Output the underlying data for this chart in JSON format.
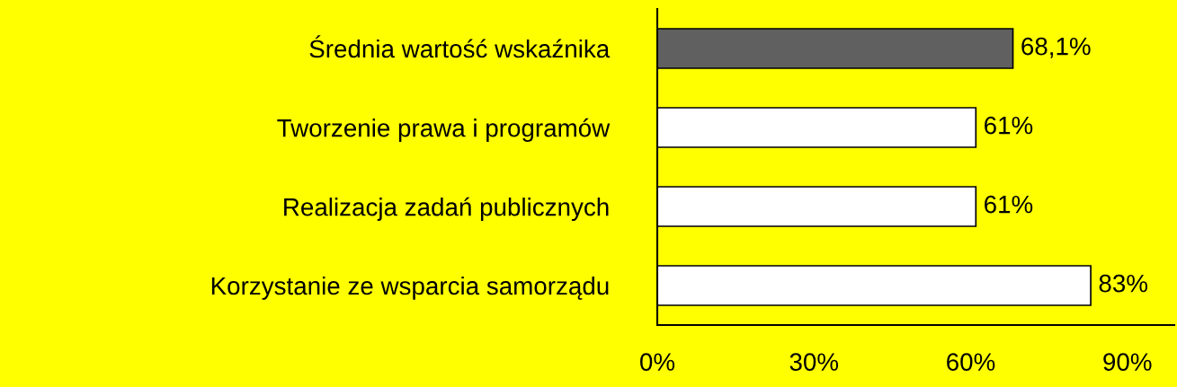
{
  "chart_data": {
    "type": "bar",
    "orientation": "horizontal",
    "categories": [
      "Średnia wartość wskaźnika",
      "Tworzenie prawa i programów",
      "Realizacja zadań publicznych",
      "Korzystanie ze wsparcia samorządu"
    ],
    "values": [
      68.1,
      61,
      61,
      83
    ],
    "colors": [
      "#606060",
      "#ffffff",
      "#ffffff",
      "#ffffff"
    ],
    "value_labels": [
      "68,1%",
      "61%",
      "61%",
      "83%"
    ],
    "xlim": [
      0,
      99
    ],
    "xticks": [
      {
        "value": 0,
        "label": "0%"
      },
      {
        "value": 30,
        "label": "30%"
      },
      {
        "value": 60,
        "label": "60%"
      },
      {
        "value": 90,
        "label": "90%"
      }
    ],
    "grid": false,
    "legend": false
  }
}
